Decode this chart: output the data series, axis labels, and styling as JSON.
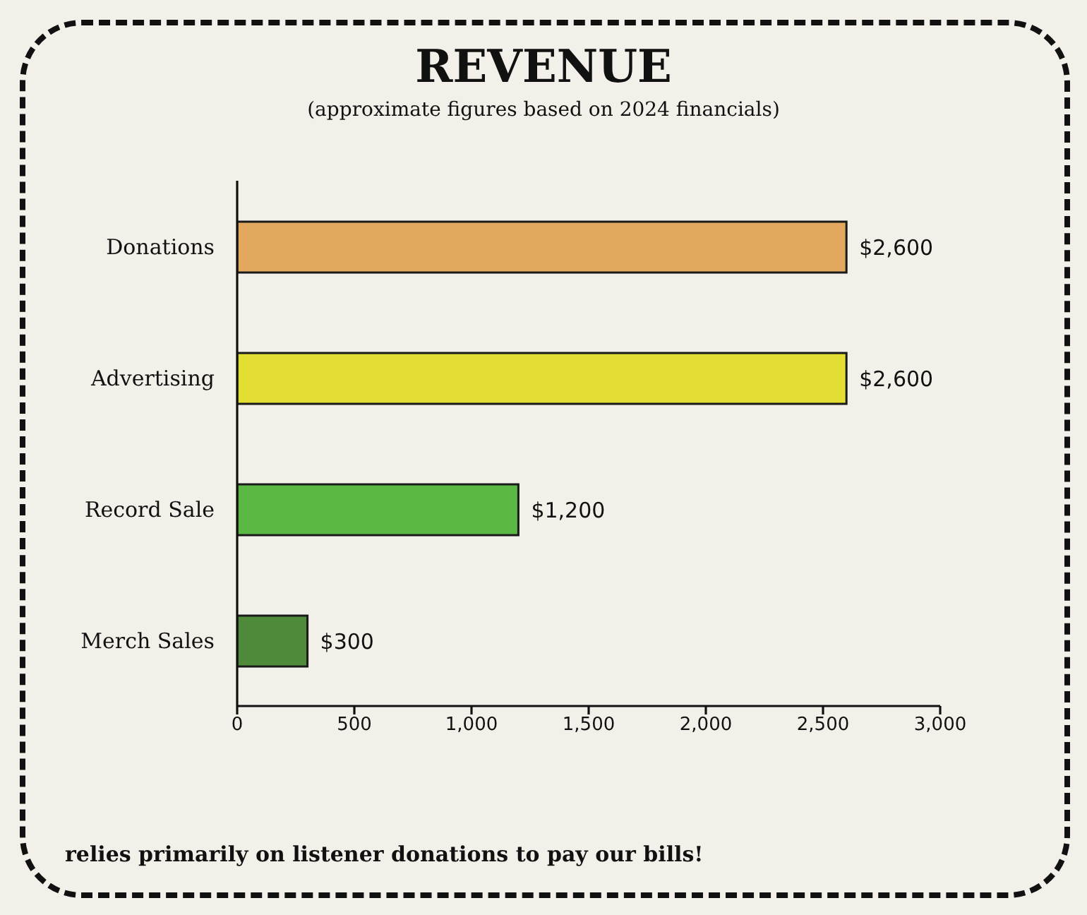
{
  "chart_data": {
    "type": "bar",
    "orientation": "horizontal",
    "title": "REVENUE",
    "subtitle": "(approximate figures based on 2024 financials)",
    "categories": [
      "Donations",
      "Advertising",
      "Record Sale",
      "Merch Sales"
    ],
    "values": [
      2600,
      2600,
      1200,
      300
    ],
    "colors": [
      "#e2a85e",
      "#e2de34",
      "#5cb845",
      "#4f8a3b"
    ],
    "value_labels": [
      "$2,600",
      "$2,600",
      "$1,200",
      "$300"
    ],
    "xlim": [
      0,
      3000
    ],
    "xticks": [
      0,
      500,
      {
        "value": 1000,
        "label": "1,000"
      },
      {
        "value": 1500,
        "label": "1,500"
      },
      {
        "value": 2000,
        "label": "2,000"
      },
      {
        "value": 2500,
        "label": "2,500"
      },
      {
        "value": 3000,
        "label": "3,000"
      }
    ],
    "annotations": [
      "relies primarily on listener donations to pay our bills!"
    ]
  }
}
